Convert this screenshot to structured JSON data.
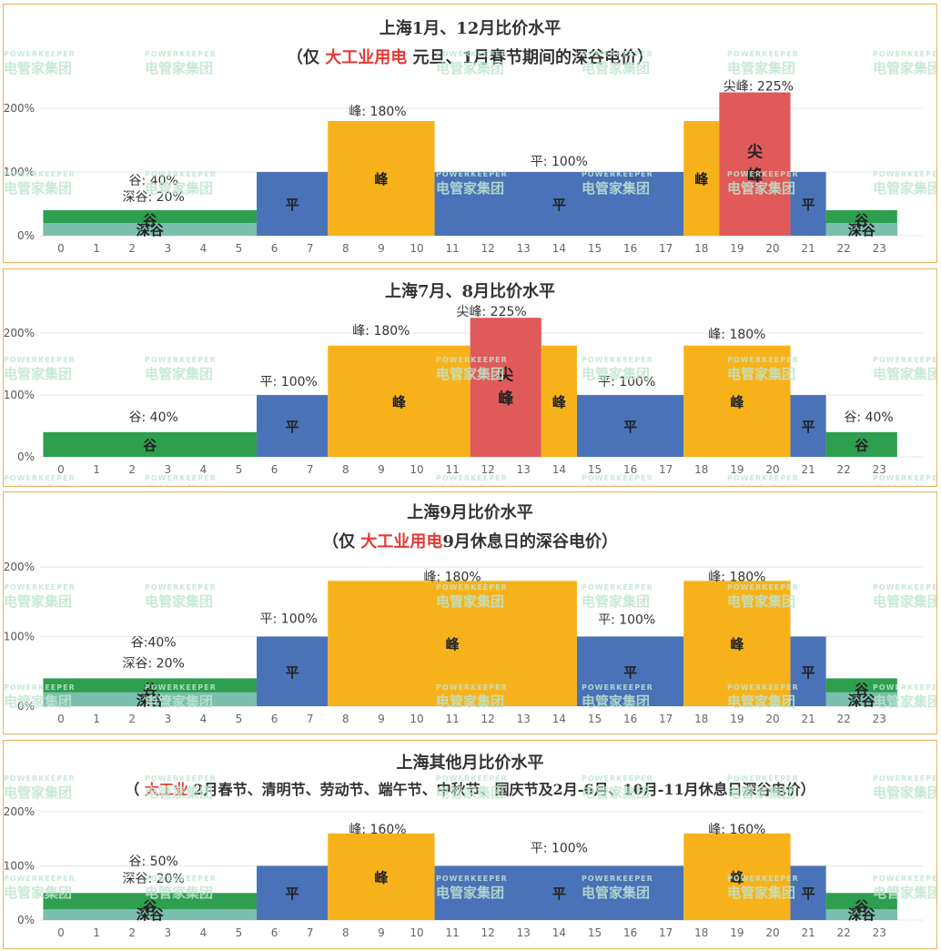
{
  "watermark": {
    "en": "POWERKEEPER",
    "cn": "电管家集团"
  },
  "colors": {
    "valley": "#2e9e4f",
    "deep": "#7bbfae",
    "flat": "#4a72b8",
    "peak": "#f7b21b",
    "sharp": "#e05a5a",
    "border": "#e7b25a"
  },
  "chart_data": [
    {
      "type": "bar",
      "title": "上海1月、12月比价水平",
      "subtitle": {
        "pre": "（仅 ",
        "hl": "大工业用电",
        "post": " 元旦、1月春节期间的深谷电价）"
      },
      "x": [
        0,
        1,
        2,
        3,
        4,
        5,
        6,
        7,
        8,
        9,
        10,
        11,
        12,
        13,
        14,
        15,
        16,
        17,
        18,
        19,
        20,
        21,
        22,
        23
      ],
      "yticks": [
        "0%",
        "100%",
        "200%"
      ],
      "ylim": [
        0,
        240
      ],
      "segments": [
        {
          "start": -0.5,
          "end": 5.5,
          "value": 40,
          "deep": 20,
          "cls": "valley",
          "label": "谷",
          "deep_label": "深谷"
        },
        {
          "start": 5.5,
          "end": 7.5,
          "value": 100,
          "cls": "flat",
          "label": "平"
        },
        {
          "start": 7.5,
          "end": 10.5,
          "value": 180,
          "cls": "peak",
          "label": "峰"
        },
        {
          "start": 10.5,
          "end": 17.5,
          "value": 100,
          "cls": "flat",
          "label": "平"
        },
        {
          "start": 17.5,
          "end": 18.5,
          "value": 180,
          "cls": "peak",
          "label": "峰"
        },
        {
          "start": 18.5,
          "end": 20.5,
          "value": 225,
          "cls": "sharp",
          "label": "尖峰"
        },
        {
          "start": 20.5,
          "end": 21.5,
          "value": 100,
          "cls": "flat",
          "label": "平"
        },
        {
          "start": 21.5,
          "end": 23.5,
          "value": 40,
          "deep": 20,
          "cls": "valley",
          "label": "谷",
          "deep_label": "深谷"
        }
      ],
      "annotations": [
        {
          "x": 2.6,
          "text": "谷: 40%",
          "dy": -28
        },
        {
          "x": 2.6,
          "text": "深谷: 20%",
          "dy": -10
        },
        {
          "x": 8.9,
          "text": "峰: 180%",
          "dy": -6
        },
        {
          "x": 14.0,
          "text": "平: 100%",
          "dy": -7
        },
        {
          "x": 19.6,
          "text": "尖峰: 225%",
          "dy": -2
        }
      ]
    },
    {
      "type": "bar",
      "title": "上海7月、8月比价水平",
      "subtitle": null,
      "x": [
        0,
        1,
        2,
        3,
        4,
        5,
        6,
        7,
        8,
        9,
        10,
        11,
        12,
        13,
        14,
        15,
        16,
        17,
        18,
        19,
        20,
        21,
        22,
        23
      ],
      "yticks": [
        "0%",
        "100%",
        "200%"
      ],
      "ylim": [
        0,
        240
      ],
      "segments": [
        {
          "start": -0.5,
          "end": 5.5,
          "value": 40,
          "cls": "valley",
          "label": "谷"
        },
        {
          "start": 5.5,
          "end": 7.5,
          "value": 100,
          "cls": "flat",
          "label": "平"
        },
        {
          "start": 7.5,
          "end": 11.5,
          "value": 180,
          "cls": "peak",
          "label": "峰"
        },
        {
          "start": 11.5,
          "end": 13.5,
          "value": 225,
          "cls": "sharp",
          "label": "尖峰"
        },
        {
          "start": 13.5,
          "end": 14.5,
          "value": 180,
          "cls": "peak",
          "label": "峰"
        },
        {
          "start": 14.5,
          "end": 17.5,
          "value": 100,
          "cls": "flat",
          "label": "平"
        },
        {
          "start": 17.5,
          "end": 20.5,
          "value": 180,
          "cls": "peak",
          "label": "峰"
        },
        {
          "start": 20.5,
          "end": 21.5,
          "value": 100,
          "cls": "flat",
          "label": "平"
        },
        {
          "start": 21.5,
          "end": 23.5,
          "value": 40,
          "cls": "valley",
          "label": "谷"
        }
      ],
      "annotations": [
        {
          "x": 2.6,
          "text": "谷: 40%",
          "dy": -12
        },
        {
          "x": 6.4,
          "text": "平: 100%",
          "dy": -10
        },
        {
          "x": 9.0,
          "text": "峰: 180%",
          "dy": -12
        },
        {
          "x": 12.1,
          "text": "尖峰: 225%",
          "dy": -2
        },
        {
          "x": 15.9,
          "text": "平: 100%",
          "dy": -10
        },
        {
          "x": 19.0,
          "text": "峰: 180%",
          "dy": -8
        },
        {
          "x": 22.7,
          "text": "谷: 40%",
          "dy": -12
        }
      ]
    },
    {
      "type": "bar",
      "title": "上海9月比价水平",
      "subtitle": {
        "pre": "（仅 ",
        "hl": "大工业用电",
        "post": "9月休息日的深谷电价）"
      },
      "x": [
        0,
        1,
        2,
        3,
        4,
        5,
        6,
        7,
        8,
        9,
        10,
        11,
        12,
        13,
        14,
        15,
        16,
        17,
        18,
        19,
        20,
        21,
        22,
        23
      ],
      "yticks": [
        "0%",
        "100%",
        "200%"
      ],
      "ylim": [
        0,
        200
      ],
      "segments": [
        {
          "start": -0.5,
          "end": 5.5,
          "value": 40,
          "deep": 20,
          "cls": "valley",
          "label": "谷",
          "deep_label": "深谷"
        },
        {
          "start": 5.5,
          "end": 7.5,
          "value": 100,
          "cls": "flat",
          "label": "平"
        },
        {
          "start": 7.5,
          "end": 14.5,
          "value": 180,
          "cls": "peak",
          "label": "峰"
        },
        {
          "start": 14.5,
          "end": 17.5,
          "value": 100,
          "cls": "flat",
          "label": "平"
        },
        {
          "start": 17.5,
          "end": 20.5,
          "value": 180,
          "cls": "peak",
          "label": "峰"
        },
        {
          "start": 20.5,
          "end": 21.5,
          "value": 100,
          "cls": "flat",
          "label": "平"
        },
        {
          "start": 21.5,
          "end": 23.5,
          "value": 40,
          "deep": 20,
          "cls": "valley",
          "label": "谷",
          "deep_label": "深谷"
        }
      ],
      "annotations": [
        {
          "x": 2.6,
          "text": "谷:40%",
          "dy": -35
        },
        {
          "x": 2.6,
          "text": "深谷: 20%",
          "dy": -12
        },
        {
          "x": 6.4,
          "text": "平: 100%",
          "dy": -15
        },
        {
          "x": 11.0,
          "text": "峰: 180%",
          "dy": 0
        },
        {
          "x": 15.9,
          "text": "平: 100%",
          "dy": -14
        },
        {
          "x": 19.0,
          "text": "峰: 180%",
          "dy": 0
        }
      ]
    },
    {
      "type": "bar",
      "title": "上海其他月比价水平",
      "subtitle": {
        "pre": "（ ",
        "hl": "大工业",
        "post": " 2月春节、清明节、劳动节、端午节、中秋节、国庆节及2月-6月、10月-11月休息日深谷电价）"
      },
      "x": [
        0,
        1,
        2,
        3,
        4,
        5,
        6,
        7,
        8,
        9,
        10,
        11,
        12,
        13,
        14,
        15,
        16,
        17,
        18,
        19,
        20,
        21,
        22,
        23
      ],
      "yticks": [
        "0%",
        "100%",
        "200%"
      ],
      "ylim": [
        0,
        210
      ],
      "segments": [
        {
          "start": -0.5,
          "end": 5.5,
          "value": 50,
          "deep": 20,
          "cls": "valley",
          "label": "谷",
          "deep_label": "深谷"
        },
        {
          "start": 5.5,
          "end": 7.5,
          "value": 100,
          "cls": "flat",
          "label": "平"
        },
        {
          "start": 7.5,
          "end": 10.5,
          "value": 160,
          "cls": "peak",
          "label": "峰"
        },
        {
          "start": 10.5,
          "end": 17.5,
          "value": 100,
          "cls": "flat",
          "label": "平"
        },
        {
          "start": 17.5,
          "end": 20.5,
          "value": 160,
          "cls": "peak",
          "label": "峰"
        },
        {
          "start": 20.5,
          "end": 21.5,
          "value": 100,
          "cls": "flat",
          "label": "平"
        },
        {
          "start": 21.5,
          "end": 23.5,
          "value": 50,
          "deep": 20,
          "cls": "valley",
          "label": "谷",
          "deep_label": "深谷"
        }
      ],
      "annotations": [
        {
          "x": 2.6,
          "text": "谷: 50%",
          "dy": -30
        },
        {
          "x": 2.6,
          "text": "深谷: 20%",
          "dy": -11
        },
        {
          "x": 8.9,
          "text": "峰: 160%",
          "dy": 0
        },
        {
          "x": 14.0,
          "text": "平: 100%",
          "dy": -15
        },
        {
          "x": 19.0,
          "text": "峰: 160%",
          "dy": 0
        }
      ]
    }
  ]
}
